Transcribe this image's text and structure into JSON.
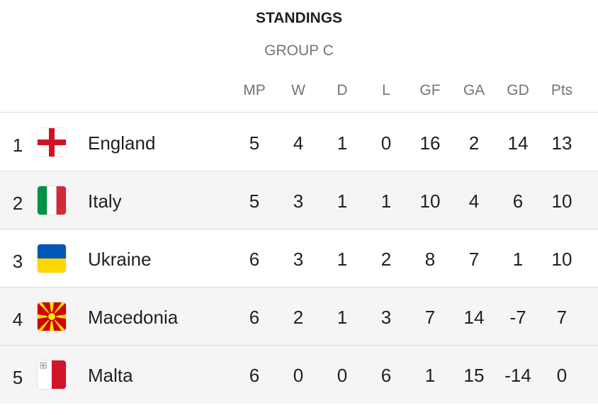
{
  "title": "STANDINGS",
  "subtitle": "GROUP C",
  "columns": [
    "MP",
    "W",
    "D",
    "L",
    "GF",
    "GA",
    "GD",
    "Pts"
  ],
  "rows": [
    {
      "rank": "1",
      "team": "England",
      "flag": "england-flag-icon",
      "stats": [
        "5",
        "4",
        "1",
        "0",
        "16",
        "2",
        "14",
        "13"
      ]
    },
    {
      "rank": "2",
      "team": "Italy",
      "flag": "italy-flag-icon",
      "stats": [
        "5",
        "3",
        "1",
        "1",
        "10",
        "4",
        "6",
        "10"
      ]
    },
    {
      "rank": "3",
      "team": "Ukraine",
      "flag": "ukraine-flag-icon",
      "stats": [
        "6",
        "3",
        "1",
        "2",
        "8",
        "7",
        "1",
        "10"
      ]
    },
    {
      "rank": "4",
      "team": "Macedonia",
      "flag": "macedonia-flag-icon",
      "stats": [
        "6",
        "2",
        "1",
        "3",
        "7",
        "14",
        "-7",
        "7"
      ]
    },
    {
      "rank": "5",
      "team": "Malta",
      "flag": "malta-flag-icon",
      "stats": [
        "6",
        "0",
        "0",
        "6",
        "1",
        "15",
        "-14",
        "0"
      ]
    }
  ],
  "colors": {
    "text": "#202124",
    "muted": "#70757a",
    "divider": "#dadce0",
    "row_shade": "#f5f5f5"
  }
}
